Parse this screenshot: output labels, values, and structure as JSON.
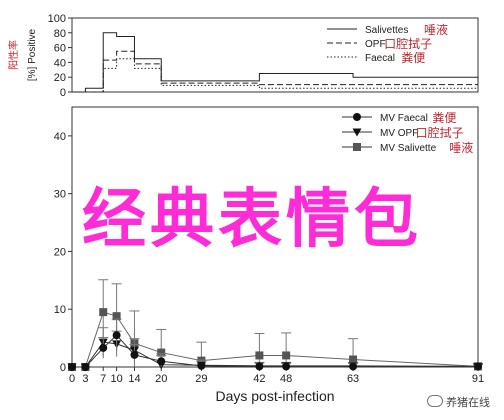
{
  "chart_data": [
    {
      "type": "line",
      "subtype": "step",
      "ylabel": "[%] Positive",
      "ylabel_annotation": "阳性率",
      "ylim": [
        0,
        100
      ],
      "yticks": [
        0,
        20,
        40,
        60,
        80,
        100
      ],
      "legend_position": "top-right",
      "series": [
        {
          "name": "Salivettes",
          "annotation": "唾液",
          "style": "solid",
          "x": [
            3,
            7,
            10,
            14,
            20,
            42,
            63,
            91
          ],
          "y": [
            5,
            80,
            75,
            45,
            15,
            25,
            20,
            15
          ]
        },
        {
          "name": "OPF",
          "annotation": "口腔拭子",
          "style": "dashed",
          "x": [
            3,
            7,
            10,
            14,
            20,
            42,
            63,
            91
          ],
          "y": [
            0,
            43,
            55,
            38,
            12,
            10,
            10,
            10
          ]
        },
        {
          "name": "Faecal",
          "annotation": "粪便",
          "style": "dotted",
          "x": [
            3,
            7,
            10,
            14,
            20,
            42,
            63,
            91
          ],
          "y": [
            0,
            32,
            45,
            32,
            9,
            5,
            5,
            5
          ]
        }
      ]
    },
    {
      "type": "line",
      "xlabel": "Days post-infection",
      "ylabel": "",
      "ylim": [
        0,
        45
      ],
      "yticks": [
        0,
        10,
        20,
        30,
        40
      ],
      "xticks": [
        0,
        3,
        7,
        10,
        14,
        20,
        29,
        42,
        48,
        63,
        91
      ],
      "legend_position": "top-right",
      "series": [
        {
          "name": "MV Faecal",
          "annotation": "粪便",
          "marker": "circle",
          "x": [
            0,
            3,
            7,
            10,
            14,
            20,
            29,
            42,
            48,
            63,
            91
          ],
          "y": [
            0,
            0,
            3.3,
            5.5,
            2.1,
            1.0,
            0.2,
            0.1,
            0.1,
            0.1,
            0.1
          ],
          "err": [
            0,
            0,
            1.8,
            2.8,
            1.8,
            1.3,
            0.8,
            0.6,
            0.5,
            0.5,
            0.3
          ]
        },
        {
          "name": "MV OPF",
          "annotation": "口腔拭子",
          "marker": "triangle-down",
          "x": [
            0,
            3,
            7,
            10,
            14,
            20,
            29,
            42,
            48,
            63,
            91
          ],
          "y": [
            0,
            0,
            4.3,
            4.0,
            2.9,
            0.4,
            0.3,
            0.2,
            0.2,
            0.2,
            0.1
          ],
          "err": [
            0,
            0,
            2.5,
            2.2,
            2.0,
            1.6,
            0.9,
            0.6,
            0.6,
            0.6,
            0.4
          ]
        },
        {
          "name": "MV Salivette",
          "annotation": "唾液",
          "marker": "square",
          "x": [
            0,
            3,
            7,
            10,
            14,
            20,
            29,
            42,
            48,
            63,
            91
          ],
          "y": [
            0,
            0,
            9.5,
            8.8,
            4.1,
            2.5,
            1.1,
            2.0,
            2.0,
            1.3,
            0.1
          ],
          "err": [
            0,
            0,
            5.6,
            5.6,
            5.6,
            4.0,
            3.2,
            3.8,
            3.9,
            3.6,
            0.5
          ]
        }
      ]
    }
  ],
  "overlay_text": "经典表情包",
  "watermark": "养猪在线"
}
